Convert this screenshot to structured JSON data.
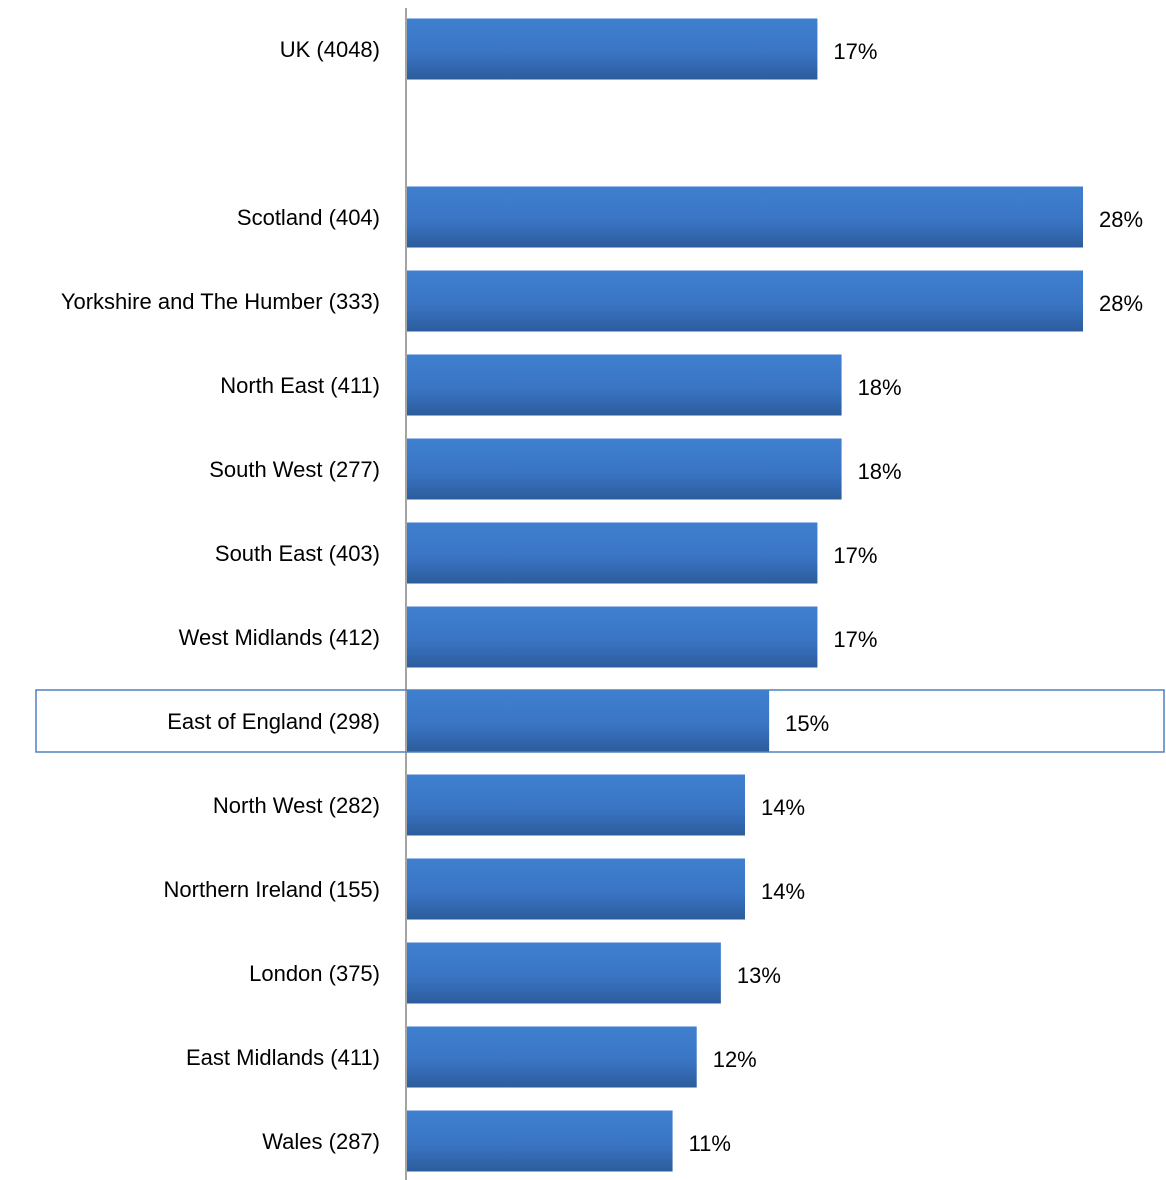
{
  "chart_data": {
    "type": "bar",
    "orientation": "horizontal",
    "categories": [
      "UK (4048)",
      "",
      "Scotland (404)",
      "Yorkshire and The Humber (333)",
      "North East (411)",
      "South West (277)",
      "South East (403)",
      "West Midlands (412)",
      "East of England (298)",
      "North West (282)",
      "Northern Ireland (155)",
      "London (375)",
      "East Midlands (411)",
      "Wales (287)"
    ],
    "values": [
      17,
      null,
      28,
      28,
      18,
      18,
      17,
      17,
      15,
      14,
      14,
      13,
      12,
      11
    ],
    "value_labels": [
      "17%",
      "",
      "28%",
      "28%",
      "18%",
      "18%",
      "17%",
      "17%",
      "15%",
      "14%",
      "14%",
      "13%",
      "12%",
      "11%"
    ],
    "highlighted_category": "East of England (298)",
    "xlim": [
      0,
      28
    ],
    "title": "",
    "xlabel": "",
    "ylabel": "",
    "grid": false,
    "legend": "none",
    "bar_color": "#3A75C4",
    "bar_color_dark": "#2C5C9C",
    "highlight_border_color": "#4F81BD",
    "axis_color": "#868686"
  }
}
